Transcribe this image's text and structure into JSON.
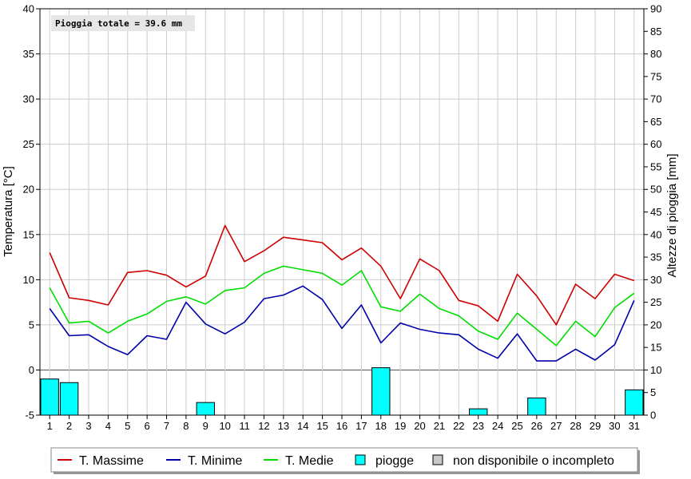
{
  "chart_data": {
    "type": "line",
    "annotation": "Pioggia totale = 39.6 mm",
    "ylabel": "Temperatura [°C]",
    "y2label": "Altezze di pioggia [mm]",
    "xlabel": "",
    "ylim": [
      -5,
      40
    ],
    "y2lim": [
      0,
      90
    ],
    "yticks": [
      -5,
      0,
      5,
      10,
      15,
      20,
      25,
      30,
      35,
      40
    ],
    "y2ticks": [
      0,
      5,
      10,
      15,
      20,
      25,
      30,
      35,
      40,
      45,
      50,
      55,
      60,
      65,
      70,
      75,
      80,
      85,
      90
    ],
    "categories": [
      "1",
      "2",
      "3",
      "4",
      "5",
      "6",
      "7",
      "8",
      "9",
      "10",
      "11",
      "12",
      "13",
      "14",
      "15",
      "16",
      "17",
      "18",
      "19",
      "20",
      "21",
      "22",
      "23",
      "24",
      "25",
      "26",
      "27",
      "28",
      "29",
      "30",
      "31"
    ],
    "series": [
      {
        "name": "T. Massime",
        "color": "#cc0000",
        "axis": "left",
        "values": [
          13.0,
          8.0,
          7.7,
          7.2,
          10.8,
          11.0,
          10.5,
          9.2,
          10.4,
          16.0,
          12.0,
          13.2,
          14.7,
          14.4,
          14.1,
          12.2,
          13.5,
          11.5,
          7.9,
          12.3,
          11.0,
          7.7,
          7.1,
          5.4,
          10.6,
          8.2,
          5.0,
          9.5,
          7.9,
          10.6,
          9.9
        ]
      },
      {
        "name": "T. Minime",
        "color": "#0000aa",
        "axis": "left",
        "values": [
          6.8,
          3.8,
          3.9,
          2.6,
          1.7,
          3.8,
          3.4,
          7.5,
          5.1,
          4.0,
          5.3,
          7.9,
          8.3,
          9.3,
          7.8,
          4.6,
          7.2,
          3.0,
          5.2,
          4.5,
          4.1,
          3.9,
          2.3,
          1.3,
          4.0,
          1.0,
          1.0,
          2.3,
          1.1,
          2.8,
          7.7
        ]
      },
      {
        "name": "T. Medie",
        "color": "#00dd00",
        "axis": "left",
        "values": [
          9.1,
          5.2,
          5.4,
          4.1,
          5.4,
          6.2,
          7.6,
          8.1,
          7.3,
          8.8,
          9.1,
          10.7,
          11.5,
          11.1,
          10.7,
          9.4,
          11.0,
          7.0,
          6.5,
          8.4,
          6.8,
          6.0,
          4.3,
          3.4,
          6.3,
          4.5,
          2.7,
          5.4,
          3.7,
          6.9,
          8.5
        ]
      },
      {
        "name": "piogge",
        "color": "#00ffff",
        "axis": "right",
        "kind": "bar",
        "values": [
          8.0,
          7.2,
          0,
          0,
          0,
          0,
          0,
          0,
          2.8,
          0,
          0,
          0,
          0,
          0,
          0,
          0,
          0,
          10.5,
          0,
          0,
          0,
          0,
          1.4,
          0,
          0,
          3.8,
          0,
          0,
          0,
          0,
          5.6
        ]
      }
    ],
    "legend": {
      "placement": "bottom",
      "items": [
        {
          "label": "T. Massime",
          "kind": "line",
          "color": "#cc0000"
        },
        {
          "label": "T. Minime",
          "kind": "line",
          "color": "#0000aa"
        },
        {
          "label": "T. Medie",
          "kind": "line",
          "color": "#00dd00"
        },
        {
          "label": "piogge",
          "kind": "box",
          "color": "#00ffff"
        },
        {
          "label": "non disponibile o incompleto",
          "kind": "box",
          "color": "#c8c8c8"
        }
      ]
    },
    "grid": true
  }
}
